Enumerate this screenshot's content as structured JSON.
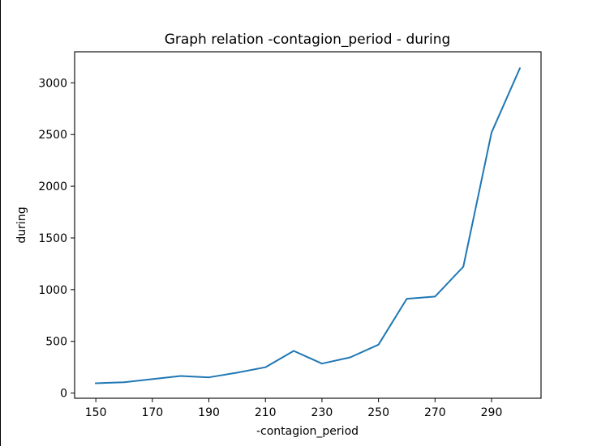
{
  "colors": {
    "line": "#1f77b4",
    "axis": "#000000",
    "background": "#ffffff"
  },
  "chart_data": {
    "type": "line",
    "title": "Graph relation -contagion_period - during",
    "xlabel": "-contagion_period",
    "ylabel": "during",
    "xlim": [
      142.5,
      307.5
    ],
    "ylim": [
      -50,
      3300
    ],
    "grid": false,
    "legend": "none",
    "x_ticks": [
      150,
      170,
      190,
      210,
      230,
      250,
      270,
      290
    ],
    "y_ticks": [
      0,
      500,
      1000,
      1500,
      2000,
      2500,
      3000
    ],
    "series": [
      {
        "x": [
          150,
          160,
          170,
          180,
          190,
          200,
          210,
          220,
          230,
          240,
          250,
          260,
          270,
          280,
          290,
          300
        ],
        "values": [
          95,
          105,
          135,
          165,
          152,
          197,
          250,
          408,
          285,
          345,
          468,
          912,
          933,
          1222,
          2520,
          3140
        ]
      }
    ]
  }
}
